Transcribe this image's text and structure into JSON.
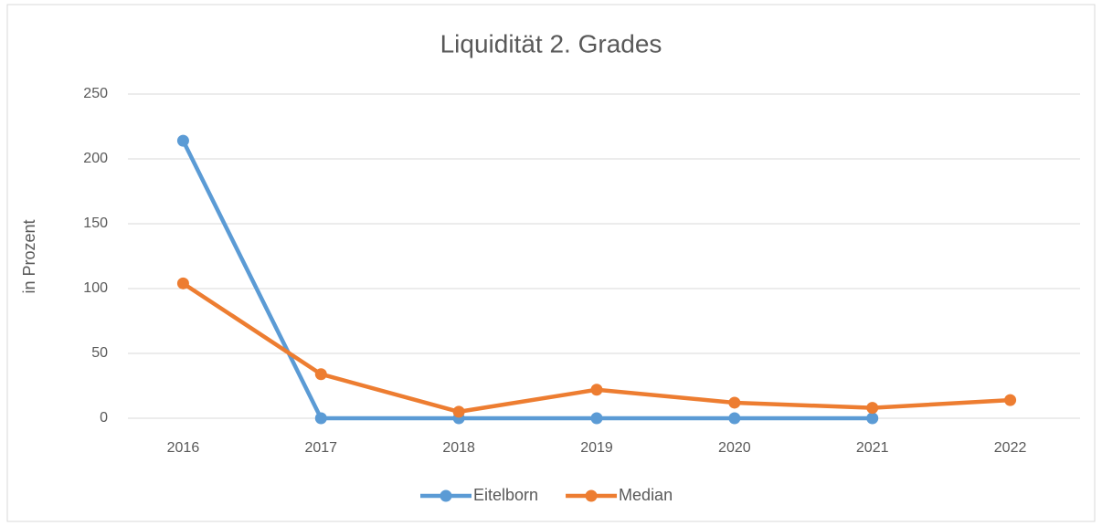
{
  "chart_data": {
    "type": "line",
    "title": "Liquidität 2. Grades",
    "y_label": "in Prozent",
    "categories": [
      "2016",
      "2017",
      "2018",
      "2019",
      "2020",
      "2021",
      "2022"
    ],
    "series": [
      {
        "name": "Eitelborn",
        "color": "#5b9bd5",
        "values": [
          214,
          0,
          0,
          0,
          0,
          0,
          null
        ]
      },
      {
        "name": "Median",
        "color": "#ed7d31",
        "values": [
          104,
          34,
          5,
          22,
          12,
          8,
          14
        ]
      }
    ],
    "ylim": [
      0,
      250
    ],
    "yticks": [
      0,
      50,
      100,
      150,
      200,
      250
    ],
    "grid": true,
    "legend": "bottom"
  }
}
